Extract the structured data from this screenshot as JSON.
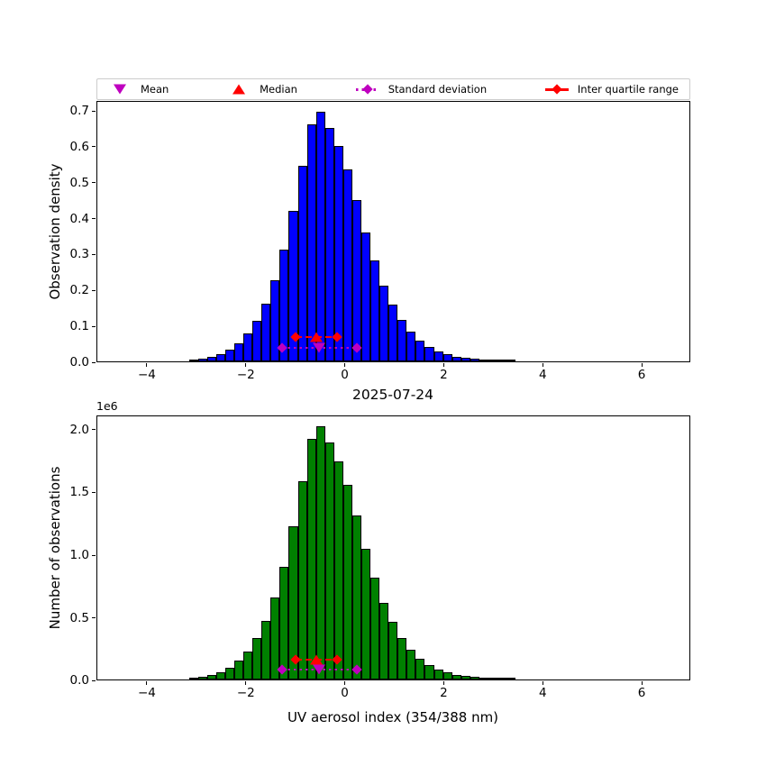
{
  "figure": {
    "title": "2025-07-24",
    "offset_label": "1e6"
  },
  "legend": {
    "items": [
      {
        "label": "Mean",
        "marker": "triangle-down",
        "color": "#BF00BF",
        "icon": "mean-triangle-down-icon"
      },
      {
        "label": "Median",
        "marker": "triangle-up",
        "color": "#FF0000",
        "icon": "median-triangle-up-icon"
      },
      {
        "label": "Standard deviation",
        "marker": "diamond-dotted-line",
        "color": "#BF00BF",
        "icon": "std-deviation-diamond-icon"
      },
      {
        "label": "Inter quartile range",
        "marker": "diamond-solid-line",
        "color": "#FF0000",
        "icon": "iqr-diamond-icon"
      }
    ]
  },
  "chart_data": [
    {
      "type": "bar",
      "panel": "top",
      "title": "",
      "xlabel": "",
      "ylabel": "Observation density",
      "bar_color": "#0000FF",
      "edge_color": "#000000",
      "grid": false,
      "xlim": [
        -5,
        7
      ],
      "ylim": [
        0,
        0.7225
      ],
      "bin_start": -3.147,
      "bin_width": 0.1833,
      "values": [
        0.004,
        0.008,
        0.013,
        0.021,
        0.033,
        0.051,
        0.077,
        0.113,
        0.16,
        0.225,
        0.31,
        0.42,
        0.545,
        0.66,
        0.695,
        0.65,
        0.6,
        0.535,
        0.45,
        0.36,
        0.28,
        0.21,
        0.158,
        0.115,
        0.083,
        0.058,
        0.04,
        0.028,
        0.02,
        0.013,
        0.01,
        0.0075,
        0.005,
        0.0035,
        0.0025,
        0.002
      ],
      "xticks": [
        -4,
        -2,
        0,
        2,
        4,
        6
      ],
      "xtick_labels": [
        "−4",
        "−2",
        "0",
        "2",
        "4",
        "6"
      ],
      "yticks": [
        0.0,
        0.1,
        0.2,
        0.3,
        0.4,
        0.5,
        0.6,
        0.7
      ],
      "ytick_labels": [
        "0.0",
        "0.1",
        "0.2",
        "0.3",
        "0.4",
        "0.5",
        "0.6",
        "0.7"
      ],
      "markers": {
        "mean": {
          "x": -0.53,
          "y": 0.0375
        },
        "median": {
          "x": -0.58,
          "y": 0.0675
        },
        "std": {
          "x1": -1.26,
          "x2": 0.24,
          "y": 0.0375
        },
        "iqr": {
          "x1": -1.0,
          "x2": -0.16,
          "y": 0.0675
        }
      }
    },
    {
      "type": "bar",
      "panel": "bottom",
      "title": "2025-07-24",
      "xlabel": "UV aerosol index (354/388 nm)",
      "ylabel": "Number of observations",
      "bar_color": "#008000",
      "edge_color": "#000000",
      "grid": false,
      "xlim": [
        -5,
        7
      ],
      "ylim": [
        0,
        2100000
      ],
      "y_offset_text": "1e6",
      "bin_start": -3.147,
      "bin_width": 0.1833,
      "values": [
        12000,
        23000,
        38000,
        61000,
        96000,
        148000,
        224000,
        328000,
        465000,
        654000,
        901000,
        1220000,
        1584000,
        1918000,
        2020000,
        1889000,
        1744000,
        1555000,
        1308000,
        1046000,
        814000,
        610000,
        459000,
        334000,
        241000,
        169000,
        116000,
        81000,
        58000,
        38000,
        29000,
        22000,
        15000,
        10000,
        7000,
        6000
      ],
      "xticks": [
        -4,
        -2,
        0,
        2,
        4,
        6
      ],
      "xtick_labels": [
        "−4",
        "−2",
        "0",
        "2",
        "4",
        "6"
      ],
      "yticks": [
        0,
        500000,
        1000000,
        1500000,
        2000000
      ],
      "ytick_labels": [
        "0.0",
        "0.5",
        "1.0",
        "1.5",
        "2.0"
      ],
      "markers": {
        "mean": {
          "x": -0.53,
          "y": 79000
        },
        "median": {
          "x": -0.58,
          "y": 157000
        },
        "std": {
          "x1": -1.26,
          "x2": 0.24,
          "y": 79000
        },
        "iqr": {
          "x1": -1.0,
          "x2": -0.16,
          "y": 157000
        }
      }
    }
  ]
}
